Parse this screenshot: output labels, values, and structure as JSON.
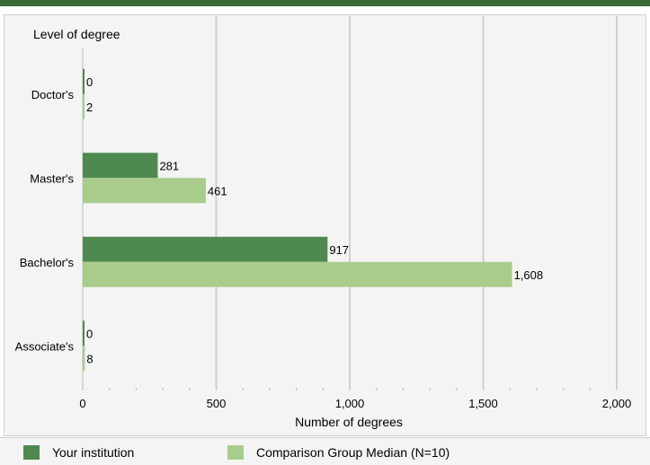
{
  "colors": {
    "top_band": "#3a6b35",
    "series_1": "#4e8a4f",
    "series_2": "#a9cc8c",
    "grid": "#d0d0d0",
    "background": "#f4f4f4"
  },
  "chart_data": {
    "type": "bar",
    "orientation": "horizontal",
    "ylabel": "Level of degree",
    "xlabel": "Number of degrees",
    "categories": [
      "Doctor's",
      "Master's",
      "Bachelor's",
      "Associate's"
    ],
    "series": [
      {
        "name": "Your institution",
        "values": [
          0,
          281,
          917,
          0
        ],
        "labels": [
          "0",
          "281",
          "917",
          "0"
        ]
      },
      {
        "name": "Comparison Group Median (N=10)",
        "values": [
          2,
          461,
          1608,
          8
        ],
        "labels": [
          "2",
          "461",
          "1,608",
          "8"
        ]
      }
    ],
    "xlim": [
      0,
      2000
    ],
    "xticks": [
      0,
      500,
      1000,
      1500,
      2000
    ],
    "xtick_labels": [
      "0",
      "500",
      "1,000",
      "1,500",
      "2,000"
    ],
    "grid": true,
    "legend_position": "bottom"
  }
}
